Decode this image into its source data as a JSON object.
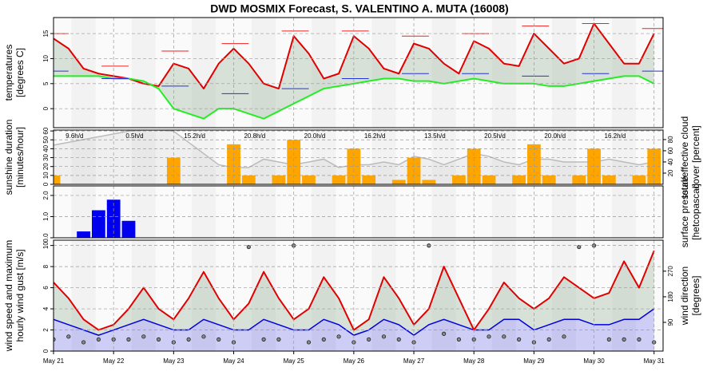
{
  "title": "DWD MOSMIX Forecast, S. VALENTINO A. MUTA (16008)",
  "chart_data": [
    {
      "type": "line",
      "ylabel": [
        "temperatures",
        "[degrees C]"
      ],
      "xlim": [
        0,
        10.15
      ],
      "ylim": [
        -3.8,
        18.2
      ],
      "yticks": [
        0,
        5,
        10,
        15
      ],
      "grid": true,
      "x": [
        0,
        0.25,
        0.5,
        0.75,
        1,
        1.25,
        1.5,
        1.75,
        2,
        2.25,
        2.5,
        2.75,
        3,
        3.25,
        3.5,
        3.75,
        4,
        4.25,
        4.5,
        4.75,
        5,
        5.25,
        5.5,
        5.75,
        6,
        6.25,
        6.5,
        6.75,
        7,
        7.25,
        7.5,
        7.75,
        8,
        8.25,
        8.5,
        8.75,
        9,
        9.25,
        9.5,
        9.75,
        10
      ],
      "series": [
        {
          "type": "line",
          "color": "#e00000",
          "values": [
            14,
            12,
            8,
            7,
            6.5,
            6,
            5,
            4.5,
            9,
            8,
            4,
            9,
            12,
            9,
            5,
            4,
            14.5,
            11,
            6,
            7,
            14.5,
            12,
            8,
            7,
            13,
            12,
            9,
            7,
            13.5,
            12,
            9,
            8.5,
            15,
            12,
            9,
            10,
            17,
            13,
            9,
            9,
            15
          ]
        },
        {
          "type": "line",
          "color": "#22ee22",
          "values": [
            6.5,
            6.5,
            6.5,
            6.5,
            6,
            6,
            5.5,
            4,
            0,
            -1,
            -2,
            0,
            0,
            -1,
            -2,
            -0.5,
            1,
            2.5,
            4,
            4.5,
            5,
            5.5,
            6,
            6,
            5.5,
            5.5,
            5,
            5.5,
            6,
            5.5,
            5,
            5,
            5,
            4.5,
            4.5,
            5,
            5.5,
            6,
            6.5,
            6.5,
            5
          ]
        },
        {
          "type": "segments",
          "color": "#ee2222",
          "x": [
            0,
            1,
            2,
            3,
            4,
            5,
            6,
            7,
            8,
            9,
            10
          ],
          "values": [
            15,
            8.5,
            11.5,
            13,
            15.5,
            15.5,
            14.5,
            15,
            16.5,
            17,
            16
          ]
        },
        {
          "type": "segments",
          "color": "#2233dd",
          "x": [
            0,
            1,
            2,
            3,
            4,
            5,
            6,
            7,
            8,
            9,
            10
          ],
          "values": [
            7.5,
            6,
            4.5,
            3,
            4,
            6,
            7,
            7,
            6.5,
            7,
            7.5
          ]
        }
      ]
    },
    {
      "type": "bar",
      "ylabel": [
        "sunshine duration",
        "[minutes/hour]"
      ],
      "y2label": [
        "total/effective cloud",
        "cover [percent]"
      ],
      "xlim": [
        0,
        10.15
      ],
      "ylim": [
        0,
        61
      ],
      "yticks": [
        0,
        10,
        20,
        30,
        40,
        50,
        60
      ],
      "y2lim": [
        0,
        97
      ],
      "y2ticks": [
        20,
        40,
        60,
        80
      ],
      "grid": true,
      "x": [
        0,
        0.25,
        0.5,
        0.75,
        1,
        1.25,
        1.5,
        1.75,
        2,
        2.25,
        2.5,
        2.75,
        3,
        3.25,
        3.5,
        3.75,
        4,
        4.25,
        4.5,
        4.75,
        5,
        5.25,
        5.5,
        5.75,
        6,
        6.25,
        6.5,
        6.75,
        7,
        7.25,
        7.5,
        7.75,
        8,
        8.25,
        8.5,
        8.75,
        9,
        9.25,
        9.5,
        9.75,
        10
      ],
      "series": [
        {
          "type": "area",
          "axis": "y2",
          "color": "#bbbbbb",
          "values": [
            70,
            75,
            80,
            85,
            90,
            95,
            97,
            97,
            95,
            75,
            55,
            35,
            30,
            30,
            45,
            40,
            35,
            40,
            45,
            30,
            35,
            35,
            40,
            35,
            50,
            45,
            35,
            45,
            55,
            50,
            40,
            35,
            45,
            45,
            40,
            40,
            40,
            45,
            40,
            35,
            40
          ]
        },
        {
          "type": "bar",
          "color": "#ffa500",
          "values": [
            10,
            0,
            0,
            0,
            0,
            0,
            0,
            0,
            30,
            0,
            0,
            0,
            45,
            10,
            0,
            10,
            50,
            10,
            0,
            10,
            40,
            10,
            0,
            5,
            30,
            5,
            0,
            10,
            40,
            10,
            0,
            10,
            45,
            10,
            0,
            10,
            40,
            10,
            0,
            10,
            40
          ]
        }
      ],
      "daily": {
        "x": [
          0,
          1,
          2,
          3,
          4,
          5,
          6,
          7,
          8,
          9
        ],
        "values": [
          9.6,
          0.5,
          15.2,
          20.8,
          20.0,
          16.2,
          13.5,
          20.5,
          20.0,
          16.2
        ],
        "value_labels": [
          "9.6h/d",
          "0.5h/d",
          "15.2h/d",
          "20.8h/d",
          "20.0h/d",
          "16.2h/d",
          "13.5h/d",
          "20.5h/d",
          "20.0h/d",
          "16.2h/d"
        ]
      }
    },
    {
      "type": "bar",
      "y2label": [
        "surface pressure",
        "[hetcopascal]"
      ],
      "xlim": [
        0,
        10.15
      ],
      "ylim": [
        0,
        2.45
      ],
      "yticks": [
        {
          "value": 0,
          "label": "0.0"
        },
        {
          "value": 1,
          "label": "1.0"
        },
        {
          "value": 2,
          "label": "2.0"
        }
      ],
      "grid": true,
      "x": [
        0,
        0.25,
        0.5,
        0.75,
        1,
        1.25,
        1.5,
        1.75,
        2,
        2.25,
        2.5,
        2.75,
        3,
        3.25,
        3.5,
        3.75,
        4,
        4.25,
        4.5,
        4.75,
        5,
        5.25,
        5.5,
        5.75,
        6,
        6.25,
        6.5,
        6.75,
        7,
        7.25,
        7.5,
        7.75,
        8,
        8.25,
        8.5,
        8.75,
        9,
        9.25,
        9.5,
        9.75,
        10
      ],
      "series": [
        {
          "type": "bar",
          "color": "#0000ee",
          "values": [
            0,
            0,
            0.3,
            1.3,
            1.8,
            0.8,
            0,
            0,
            0,
            0,
            0,
            0,
            0,
            0,
            0,
            0,
            0,
            0,
            0,
            0,
            0,
            0,
            0,
            0,
            0,
            0,
            0,
            0,
            0,
            0,
            0,
            0,
            0,
            0,
            0,
            0,
            0,
            0,
            0,
            0,
            0
          ]
        }
      ]
    },
    {
      "type": "line",
      "ylabel": [
        "wind speed and maximum",
        "hourly wind gust [m/s]"
      ],
      "y2label": [
        "wind direction",
        "[degrees]"
      ],
      "xlim": [
        0,
        10.15
      ],
      "ylim": [
        0,
        10.5
      ],
      "yticks": [
        0,
        2,
        4,
        6,
        8,
        10
      ],
      "y2lim": [
        -11,
        379
      ],
      "y2ticks": [
        90,
        180,
        270
      ],
      "grid": true,
      "xticks": [
        {
          "value": 0,
          "label": "May 21"
        },
        {
          "value": 1,
          "label": "May 22"
        },
        {
          "value": 2,
          "label": "May 23"
        },
        {
          "value": 3,
          "label": "May 24"
        },
        {
          "value": 4,
          "label": "May 25"
        },
        {
          "value": 5,
          "label": "May 26"
        },
        {
          "value": 6,
          "label": "May 27"
        },
        {
          "value": 7,
          "label": "May 28"
        },
        {
          "value": 8,
          "label": "May 29"
        },
        {
          "value": 9,
          "label": "May 30"
        },
        {
          "value": 10,
          "label": "May 31"
        }
      ],
      "x": [
        0,
        0.25,
        0.5,
        0.75,
        1,
        1.25,
        1.5,
        1.75,
        2,
        2.25,
        2.5,
        2.75,
        3,
        3.25,
        3.5,
        3.75,
        4,
        4.25,
        4.5,
        4.75,
        5,
        5.25,
        5.5,
        5.75,
        6,
        6.25,
        6.5,
        6.75,
        7,
        7.25,
        7.5,
        7.75,
        8,
        8.25,
        8.5,
        8.75,
        9,
        9.25,
        9.5,
        9.75,
        10
      ],
      "series": [
        {
          "type": "area",
          "color": "#0000dd",
          "values": [
            3,
            2.5,
            2,
            1.5,
            2,
            2.5,
            3,
            2.5,
            2,
            2,
            3,
            2.5,
            2,
            2,
            3,
            2.5,
            2,
            2,
            3,
            2.5,
            1.5,
            2,
            3,
            2.5,
            1.5,
            2.5,
            3,
            2.5,
            2,
            2,
            3,
            3,
            2,
            2.5,
            3,
            3,
            2.5,
            2.5,
            3,
            3,
            4
          ]
        },
        {
          "type": "line",
          "color": "#e00000",
          "values": [
            6.5,
            5,
            3,
            2,
            2.5,
            4,
            6,
            4,
            3,
            5,
            7.5,
            5,
            3,
            4.5,
            7.5,
            5,
            3,
            4,
            7,
            5,
            2,
            3,
            7,
            5,
            2.5,
            4,
            8,
            5,
            2,
            4,
            6.5,
            5,
            4,
            5,
            7,
            6,
            5,
            5.5,
            8.5,
            6,
            9.5
          ]
        },
        {
          "type": "scatter",
          "axis": "y2",
          "color": "#222222",
          "values": [
            30,
            40,
            20,
            30,
            30,
            30,
            40,
            30,
            20,
            30,
            40,
            30,
            20,
            355,
            30,
            30,
            360,
            20,
            30,
            40,
            20,
            30,
            40,
            30,
            20,
            360,
            50,
            30,
            30,
            40,
            40,
            30,
            20,
            30,
            40,
            355,
            360,
            30,
            30,
            30,
            20
          ]
        }
      ]
    }
  ]
}
